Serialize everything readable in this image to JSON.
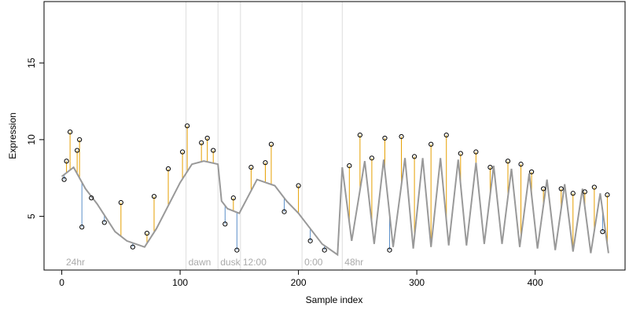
{
  "chart_data": {
    "type": "scatter",
    "xlabel": "Sample index",
    "ylabel": "Expression",
    "xlim": [
      0,
      465
    ],
    "ylim": [
      1.5,
      19
    ],
    "x_ticks": [
      0,
      100,
      200,
      300,
      400
    ],
    "y_ticks": [
      5,
      10,
      15
    ],
    "grid": false,
    "vertical_markers": [
      {
        "x": 105,
        "label": "dawn"
      },
      {
        "x": 132,
        "label": "dusk"
      },
      {
        "x": 151,
        "label": "12:00"
      },
      {
        "x": 203,
        "label": "0:00"
      },
      {
        "x": 237,
        "label": "48hr"
      }
    ],
    "corner_label": "24hr",
    "colors": {
      "observed_points": "#000000",
      "fitted_curve": "#999999",
      "residual_above": "#E69F00",
      "residual_below": "#5B8FC9",
      "marker_lines": "#DDDDDD",
      "marker_text": "#AAAAAA"
    },
    "series": [
      {
        "name": "",
        "role": "fitted",
        "x": [
          0,
          10,
          20,
          30,
          45,
          55,
          70,
          80,
          100,
          110,
          120,
          132,
          135,
          140,
          150,
          165,
          180,
          190,
          200,
          210,
          220,
          233,
          237,
          245,
          256,
          264,
          272,
          280,
          290,
          297,
          305,
          312,
          320,
          327,
          335,
          342,
          350,
          357,
          365,
          372,
          380,
          387,
          395,
          402,
          410,
          417,
          425,
          432,
          440,
          447,
          455,
          462
        ],
        "y": [
          7.6,
          8.2,
          6.8,
          5.8,
          4.0,
          3.4,
          3.0,
          4.2,
          7.2,
          8.4,
          8.6,
          8.4,
          6.0,
          5.5,
          5.2,
          7.4,
          7.0,
          6.0,
          5.2,
          4.2,
          3.2,
          2.5,
          8.2,
          3.4,
          8.6,
          3.2,
          8.7,
          3.0,
          8.8,
          2.9,
          8.8,
          3.0,
          8.8,
          3.1,
          8.7,
          3.1,
          8.5,
          3.2,
          8.3,
          3.2,
          8.1,
          3.0,
          7.8,
          2.9,
          7.4,
          2.8,
          7.1,
          2.7,
          6.8,
          2.6,
          6.5,
          2.6
        ]
      }
    ],
    "observed_sample": [
      {
        "x": 2,
        "y": 7.4
      },
      {
        "x": 4,
        "y": 8.6
      },
      {
        "x": 7,
        "y": 10.5
      },
      {
        "x": 13,
        "y": 9.3
      },
      {
        "x": 15,
        "y": 10.0
      },
      {
        "x": 17,
        "y": 4.3
      },
      {
        "x": 25,
        "y": 6.2
      },
      {
        "x": 36,
        "y": 4.6
      },
      {
        "x": 50,
        "y": 5.9
      },
      {
        "x": 60,
        "y": 3.0
      },
      {
        "x": 72,
        "y": 3.9
      },
      {
        "x": 78,
        "y": 6.3
      },
      {
        "x": 90,
        "y": 8.1
      },
      {
        "x": 102,
        "y": 9.2
      },
      {
        "x": 106,
        "y": 10.9
      },
      {
        "x": 118,
        "y": 9.8
      },
      {
        "x": 123,
        "y": 10.1
      },
      {
        "x": 128,
        "y": 9.3
      },
      {
        "x": 138,
        "y": 4.5
      },
      {
        "x": 145,
        "y": 6.2
      },
      {
        "x": 148,
        "y": 2.8
      },
      {
        "x": 160,
        "y": 8.2
      },
      {
        "x": 172,
        "y": 8.5
      },
      {
        "x": 177,
        "y": 9.7
      },
      {
        "x": 188,
        "y": 5.3
      },
      {
        "x": 200,
        "y": 7.0
      },
      {
        "x": 210,
        "y": 3.4
      },
      {
        "x": 222,
        "y": 2.8
      },
      {
        "x": 243,
        "y": 8.3
      },
      {
        "x": 252,
        "y": 10.3
      },
      {
        "x": 262,
        "y": 8.8
      },
      {
        "x": 273,
        "y": 10.1
      },
      {
        "x": 277,
        "y": 2.8
      },
      {
        "x": 287,
        "y": 10.2
      },
      {
        "x": 298,
        "y": 8.9
      },
      {
        "x": 312,
        "y": 9.7
      },
      {
        "x": 325,
        "y": 10.3
      },
      {
        "x": 337,
        "y": 9.1
      },
      {
        "x": 350,
        "y": 9.2
      },
      {
        "x": 362,
        "y": 8.2
      },
      {
        "x": 377,
        "y": 8.6
      },
      {
        "x": 388,
        "y": 8.4
      },
      {
        "x": 397,
        "y": 7.9
      },
      {
        "x": 407,
        "y": 6.8
      },
      {
        "x": 422,
        "y": 6.8
      },
      {
        "x": 432,
        "y": 6.5
      },
      {
        "x": 442,
        "y": 6.6
      },
      {
        "x": 450,
        "y": 6.9
      },
      {
        "x": 457,
        "y": 4.0
      },
      {
        "x": 461,
        "y": 6.4
      }
    ]
  }
}
